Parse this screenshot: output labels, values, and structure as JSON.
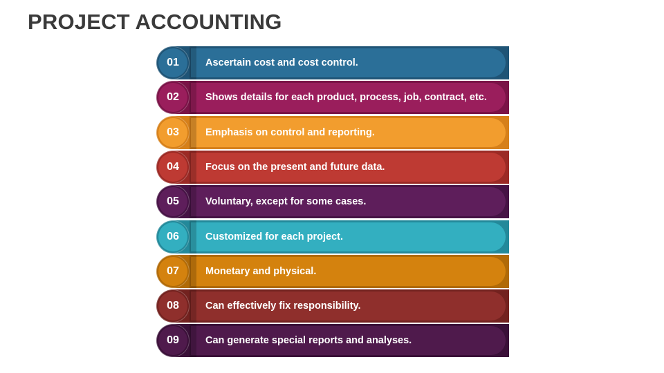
{
  "title": "PROJECT ACCOUNTING",
  "items": [
    {
      "number": "01",
      "text": "Ascertain cost and cost control.",
      "light": "#2B6F98",
      "dark": "#1F5476"
    },
    {
      "number": "02",
      "text": "Shows details for each product, process, job, contract, etc.",
      "light": "#9A1E5C",
      "dark": "#7A1347"
    },
    {
      "number": "03",
      "text": "Emphasis on control and reporting.",
      "light": "#F29D2E",
      "dark": "#D6801A"
    },
    {
      "number": "04",
      "text": "Focus on the present and future data.",
      "light": "#BE3A33",
      "dark": "#9B2A25"
    },
    {
      "number": "05",
      "text": "Voluntary, except for some cases.",
      "light": "#5E1E5B",
      "dark": "#461345"
    },
    {
      "number": "06",
      "text": "Customized for each project.",
      "light": "#33AFC0",
      "dark": "#23899A"
    },
    {
      "number": "07",
      "text": "Monetary and physical.",
      "light": "#D4820E",
      "dark": "#B06A08"
    },
    {
      "number": "08",
      "text": "Can effectively fix responsibility.",
      "light": "#8F2F2C",
      "dark": "#73221F"
    },
    {
      "number": "09",
      "text": "Can generate special reports and analyses.",
      "light": "#4F1A4C",
      "dark": "#3A1038"
    }
  ]
}
